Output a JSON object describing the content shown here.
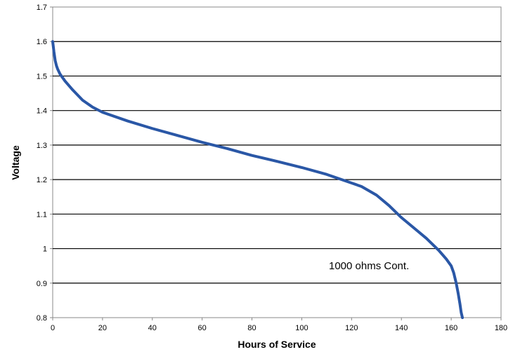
{
  "chart_data": {
    "type": "line",
    "title": "",
    "xlabel": "Hours of Service",
    "ylabel": "Voltage",
    "xlim": [
      0,
      180
    ],
    "ylim": [
      0.8,
      1.7
    ],
    "x_ticks": [
      0,
      20,
      40,
      60,
      80,
      100,
      120,
      140,
      160,
      180
    ],
    "y_ticks": [
      "0.8",
      "0.9",
      "1",
      "1.1",
      "1.2",
      "1.3",
      "1.4",
      "1.5",
      "1.6",
      "1.7"
    ],
    "grid": "horizontal",
    "legend": "none",
    "annotation": "1000 ohms Cont.",
    "series_color": "#2a57a6",
    "series": [
      {
        "x": [
          0,
          0.5,
          1,
          1.5,
          2,
          3,
          5,
          8,
          12,
          16,
          20,
          30,
          40,
          50,
          60,
          70,
          80,
          90,
          100,
          110,
          120,
          124,
          130,
          135,
          140,
          145,
          150,
          155,
          158,
          160,
          161,
          162,
          162.8,
          163.5,
          164,
          164.5
        ],
        "y": [
          1.6,
          1.57,
          1.545,
          1.53,
          1.52,
          1.505,
          1.485,
          1.46,
          1.43,
          1.41,
          1.395,
          1.37,
          1.348,
          1.328,
          1.308,
          1.29,
          1.27,
          1.253,
          1.235,
          1.215,
          1.19,
          1.18,
          1.155,
          1.125,
          1.09,
          1.06,
          1.03,
          0.995,
          0.97,
          0.95,
          0.93,
          0.9,
          0.87,
          0.84,
          0.815,
          0.8
        ]
      }
    ]
  }
}
